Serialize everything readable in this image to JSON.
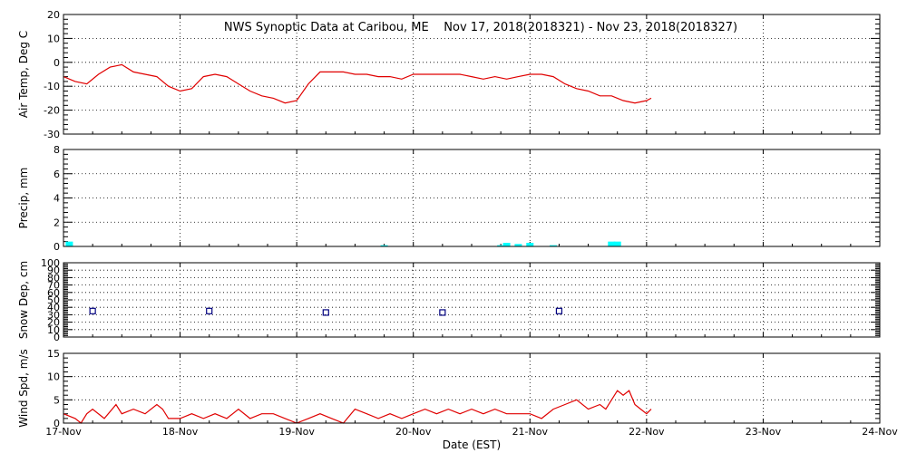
{
  "chart_data": [
    {
      "type": "line",
      "title": "NWS Synoptic Data at Caribou, ME    Nov 17, 2018(2018321) - Nov 23, 2018(2018327)",
      "ylabel": "Air Temp, Deg C",
      "ylim": [
        -30,
        20
      ],
      "yticks": [
        -30,
        -20,
        -10,
        0,
        10,
        20
      ],
      "grid": true,
      "color": "#e00000",
      "x": [
        0.0,
        0.1,
        0.2,
        0.3,
        0.4,
        0.5,
        0.6,
        0.7,
        0.8,
        0.9,
        1.0,
        1.1,
        1.2,
        1.3,
        1.4,
        1.5,
        1.6,
        1.7,
        1.8,
        1.9,
        2.0,
        2.1,
        2.2,
        2.3,
        2.4,
        2.5,
        2.6,
        2.7,
        2.8,
        2.9,
        3.0,
        3.1,
        3.2,
        3.3,
        3.4,
        3.5,
        3.6,
        3.7,
        3.8,
        3.9,
        4.0,
        4.1,
        4.2,
        4.3,
        4.4,
        4.5,
        4.6,
        4.7,
        4.8,
        4.9,
        5.0,
        5.04
      ],
      "values": [
        -6,
        -8,
        -9,
        -5,
        -2,
        -1,
        -4,
        -5,
        -6,
        -10,
        -12,
        -11,
        -6,
        -5,
        -6,
        -9,
        -12,
        -14,
        -15,
        -17,
        -16,
        -9,
        -4,
        -4,
        -4,
        -5,
        -5,
        -6,
        -6,
        -7,
        -5,
        -5,
        -5,
        -5,
        -5,
        -6,
        -7,
        -6,
        -7,
        -6,
        -5,
        -5,
        -6,
        -9,
        -11,
        -12,
        -14,
        -14,
        -16,
        -17,
        -16,
        -15
      ]
    },
    {
      "type": "bar",
      "ylabel": "Precip, mm",
      "ylim": [
        0,
        8
      ],
      "yticks": [
        0,
        2,
        4,
        6,
        8
      ],
      "grid": true,
      "color": "#00ffff",
      "x": [
        0.05,
        2.75,
        3.75,
        3.8,
        3.9,
        4.0,
        4.2,
        4.7,
        4.75
      ],
      "values": [
        0.4,
        0.1,
        0.1,
        0.3,
        0.2,
        0.3,
        0.1,
        0.4,
        0.4
      ]
    },
    {
      "type": "scatter",
      "ylabel": "Snow Dep, cm",
      "ylim": [
        0,
        100
      ],
      "yticks": [
        0,
        10,
        20,
        30,
        40,
        50,
        60,
        70,
        80,
        90,
        100
      ],
      "grid": true,
      "color": "#00007f",
      "x": [
        0.25,
        1.25,
        2.25,
        3.25,
        4.25
      ],
      "values": [
        35,
        35,
        33,
        33,
        35
      ]
    },
    {
      "type": "line",
      "ylabel": "Wind Spd, m/s",
      "xlabel": "Date (EST)",
      "ylim": [
        0,
        15
      ],
      "yticks": [
        0,
        5,
        10,
        15
      ],
      "grid": true,
      "color": "#e00000",
      "x": [
        0.0,
        0.1,
        0.15,
        0.2,
        0.25,
        0.35,
        0.45,
        0.5,
        0.6,
        0.7,
        0.8,
        0.85,
        0.9,
        1.0,
        1.1,
        1.2,
        1.3,
        1.4,
        1.5,
        1.6,
        1.7,
        1.8,
        1.9,
        2.0,
        2.1,
        2.2,
        2.3,
        2.4,
        2.5,
        2.6,
        2.7,
        2.8,
        2.9,
        3.0,
        3.1,
        3.2,
        3.3,
        3.4,
        3.5,
        3.6,
        3.7,
        3.8,
        3.9,
        4.0,
        4.1,
        4.2,
        4.3,
        4.4,
        4.5,
        4.6,
        4.65,
        4.7,
        4.75,
        4.8,
        4.85,
        4.9,
        4.95,
        5.0,
        5.04
      ],
      "values": [
        2,
        1,
        0,
        2,
        3,
        1,
        4,
        2,
        3,
        2,
        4,
        3,
        1,
        1,
        2,
        1,
        2,
        1,
        3,
        1,
        2,
        2,
        1,
        0,
        1,
        2,
        1,
        0,
        3,
        2,
        1,
        2,
        1,
        2,
        3,
        2,
        3,
        2,
        3,
        2,
        3,
        2,
        2,
        2,
        1,
        3,
        4,
        5,
        3,
        4,
        3,
        5,
        7,
        6,
        7,
        4,
        3,
        2,
        3
      ]
    }
  ],
  "x_axis": {
    "tick_labels": [
      "17-Nov",
      "18-Nov",
      "19-Nov",
      "20-Nov",
      "21-Nov",
      "22-Nov",
      "23-Nov",
      "24-Nov"
    ],
    "xlabel": "Date (EST)",
    "xlim": [
      0,
      7
    ]
  }
}
